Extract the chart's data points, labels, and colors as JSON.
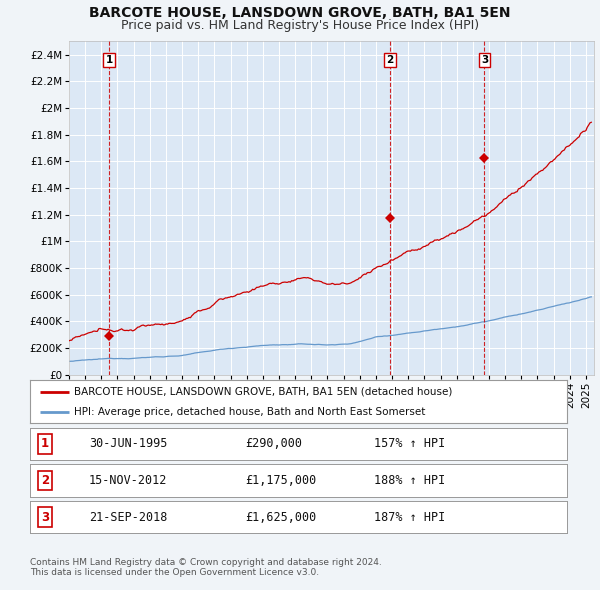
{
  "title": "BARCOTE HOUSE, LANSDOWN GROVE, BATH, BA1 5EN",
  "subtitle": "Price paid vs. HM Land Registry's House Price Index (HPI)",
  "background_color": "#f0f4f8",
  "plot_bg_color": "#dce8f5",
  "ylim": [
    0,
    2500000
  ],
  "yticks": [
    0,
    200000,
    400000,
    600000,
    800000,
    1000000,
    1200000,
    1400000,
    1600000,
    1800000,
    2000000,
    2200000,
    2400000
  ],
  "ytick_labels": [
    "£0",
    "£200K",
    "£400K",
    "£600K",
    "£800K",
    "£1M",
    "£1.2M",
    "£1.4M",
    "£1.6M",
    "£1.8M",
    "£2M",
    "£2.2M",
    "£2.4M"
  ],
  "xlim_start": 1993.0,
  "xlim_end": 2025.5,
  "sale_dates": [
    1995.5,
    2012.88,
    2018.72
  ],
  "sale_prices": [
    290000,
    1175000,
    1625000
  ],
  "sale_labels": [
    "1",
    "2",
    "3"
  ],
  "vline_color": "#cc0000",
  "dot_color": "#cc0000",
  "red_line_color": "#cc0000",
  "blue_line_color": "#6699cc",
  "legend_red_label": "BARCOTE HOUSE, LANSDOWN GROVE, BATH, BA1 5EN (detached house)",
  "legend_blue_label": "HPI: Average price, detached house, Bath and North East Somerset",
  "table_rows": [
    [
      "1",
      "30-JUN-1995",
      "£290,000",
      "157% ↑ HPI"
    ],
    [
      "2",
      "15-NOV-2012",
      "£1,175,000",
      "188% ↑ HPI"
    ],
    [
      "3",
      "21-SEP-2018",
      "£1,625,000",
      "187% ↑ HPI"
    ]
  ],
  "footer": "Contains HM Land Registry data © Crown copyright and database right 2024.\nThis data is licensed under the Open Government Licence v3.0.",
  "grid_color": "#ffffff",
  "title_fontsize": 10,
  "subtitle_fontsize": 9,
  "tick_fontsize": 7.5
}
